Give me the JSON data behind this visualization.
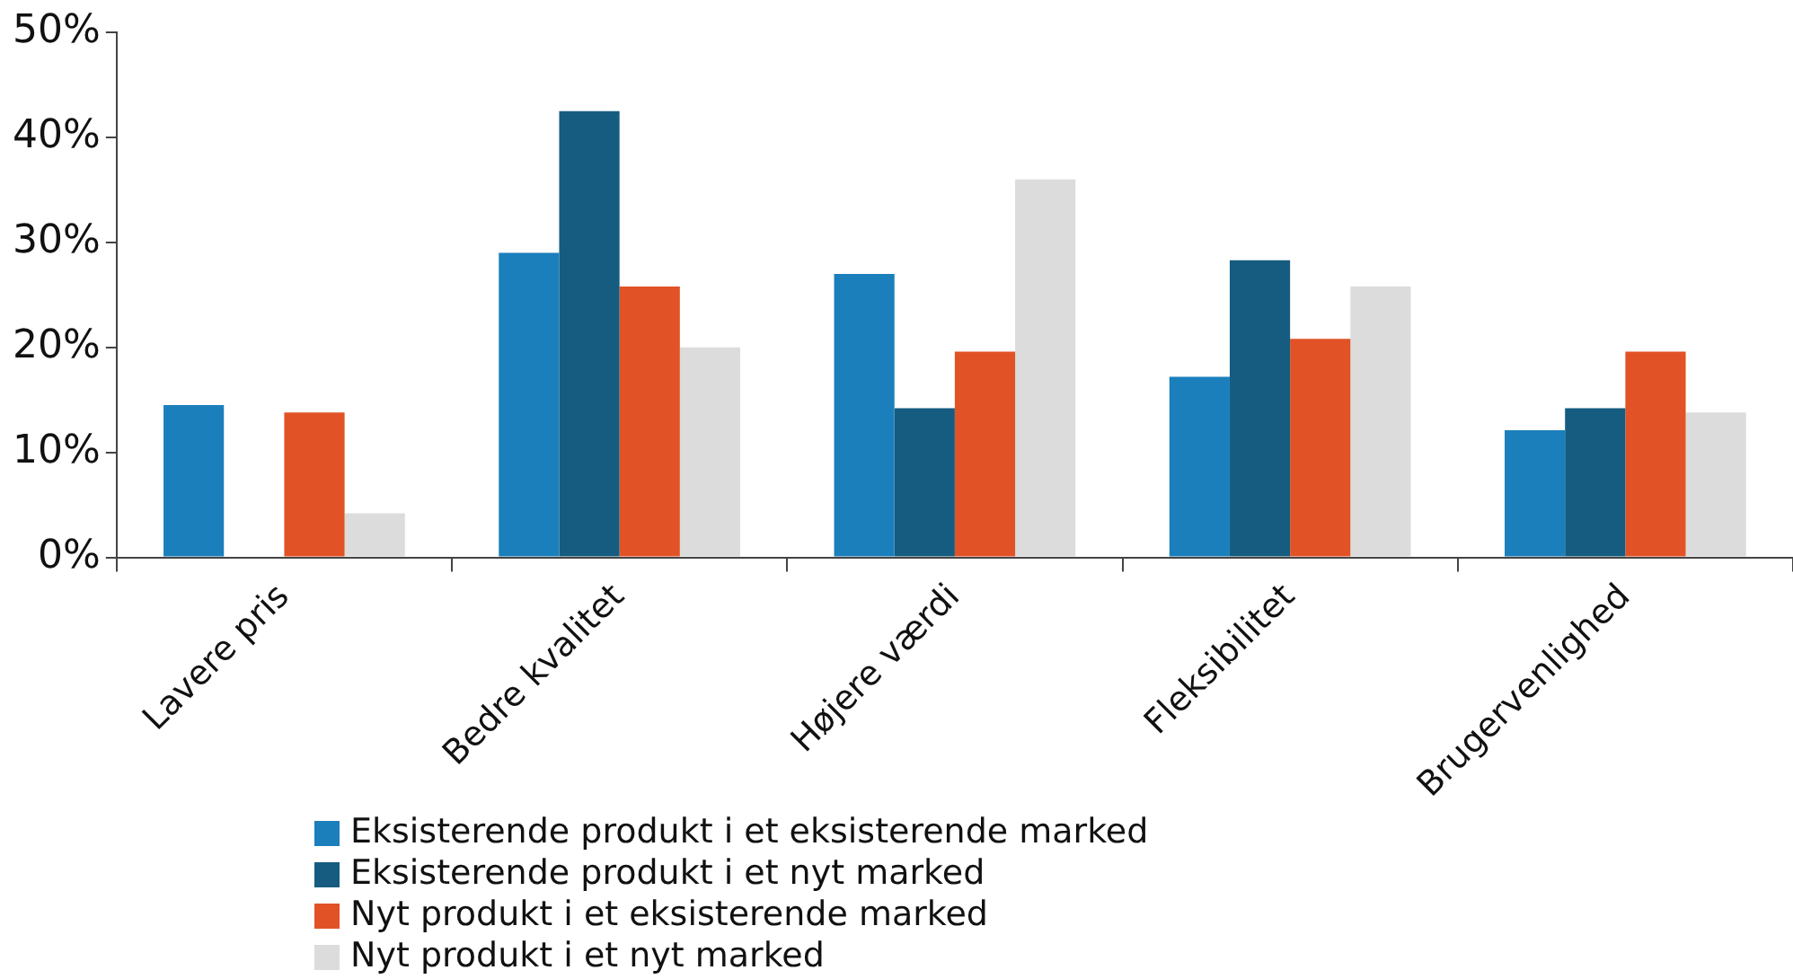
{
  "chart_data": {
    "type": "bar",
    "categories": [
      "Lavere pris",
      "Bedre kvalitet",
      "Højere værdi",
      "Fleksibilitet",
      "Brugervenlighed"
    ],
    "series": [
      {
        "name": "Eksisterende produkt i et eksisterende marked",
        "color": "#1b7fbb",
        "values": [
          14.5,
          29,
          27,
          17.2,
          12.1
        ]
      },
      {
        "name": "Eksisterende produkt i et nyt marked",
        "color": "#155c80",
        "values": [
          null,
          42.5,
          14.2,
          28.3,
          14.2
        ]
      },
      {
        "name": "Nyt produkt i et eksisterende marked",
        "color": "#e15326",
        "values": [
          13.8,
          25.8,
          19.6,
          20.8,
          19.6
        ]
      },
      {
        "name": "Nyt produkt i et nyt marked",
        "color": "#dcdcdc",
        "values": [
          4.2,
          20,
          36,
          25.8,
          13.8
        ]
      }
    ],
    "ylim": [
      0,
      50
    ],
    "yticks": [
      {
        "value": 0,
        "label": "0%"
      },
      {
        "value": 10,
        "label": "10%"
      },
      {
        "value": 20,
        "label": "20%"
      },
      {
        "value": 30,
        "label": "30%"
      },
      {
        "value": 40,
        "label": "40%"
      },
      {
        "value": 50,
        "label": "50%"
      }
    ],
    "grid": false,
    "legend": "bottom"
  }
}
